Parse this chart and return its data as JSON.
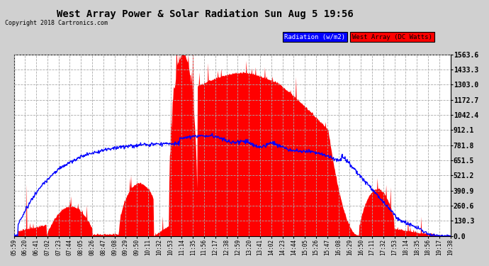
{
  "title": "West Array Power & Solar Radiation Sun Aug 5 19:56",
  "copyright": "Copyright 2018 Cartronics.com",
  "legend_radiation": "Radiation (w/m2)",
  "legend_west": "West Array (DC Watts)",
  "y_ticks": [
    0.0,
    130.3,
    260.6,
    390.9,
    521.2,
    651.5,
    781.8,
    912.1,
    1042.4,
    1172.7,
    1303.0,
    1433.3,
    1563.6
  ],
  "ylim": [
    0,
    1563.6
  ],
  "fig_bg": "#d0d0d0",
  "plot_bg": "#ffffff",
  "radiation_color": "#0000ff",
  "west_color": "#ff0000",
  "grid_color": "#aaaaaa",
  "x_labels": [
    "05:59",
    "06:20",
    "06:41",
    "07:02",
    "07:23",
    "07:44",
    "08:05",
    "08:26",
    "08:47",
    "09:08",
    "09:29",
    "09:50",
    "10:11",
    "10:32",
    "10:53",
    "11:14",
    "11:35",
    "11:56",
    "12:17",
    "12:38",
    "12:59",
    "13:20",
    "13:41",
    "14:02",
    "14:23",
    "14:44",
    "15:05",
    "15:26",
    "15:47",
    "16:08",
    "16:29",
    "16:50",
    "17:11",
    "17:32",
    "17:53",
    "18:14",
    "18:35",
    "18:56",
    "19:17",
    "19:38"
  ],
  "n_points": 800
}
